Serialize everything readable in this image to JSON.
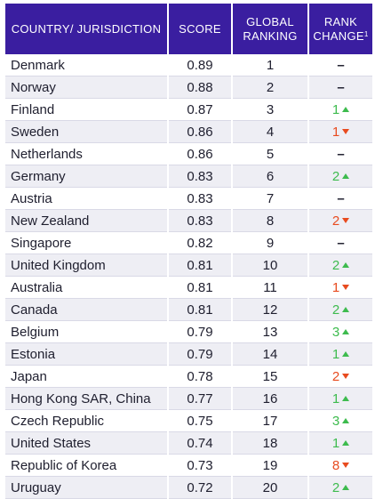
{
  "headers": {
    "country": "COUNTRY/ JURISDICTION",
    "score": "SCORE",
    "ranking": "GLOBAL RANKING",
    "change": "RANK CHANGE",
    "change_footnote": "1"
  },
  "colors": {
    "header_bg": "#3a1ea0",
    "up": "#3dbb4e",
    "down": "#e84b1f"
  },
  "rows": [
    {
      "country": "Denmark",
      "score": "0.89",
      "rank": "1",
      "change": "",
      "dir": "none"
    },
    {
      "country": "Norway",
      "score": "0.88",
      "rank": "2",
      "change": "",
      "dir": "none"
    },
    {
      "country": "Finland",
      "score": "0.87",
      "rank": "3",
      "change": "1",
      "dir": "up"
    },
    {
      "country": "Sweden",
      "score": "0.86",
      "rank": "4",
      "change": "1",
      "dir": "down"
    },
    {
      "country": "Netherlands",
      "score": "0.86",
      "rank": "5",
      "change": "",
      "dir": "none"
    },
    {
      "country": "Germany",
      "score": "0.83",
      "rank": "6",
      "change": "2",
      "dir": "up"
    },
    {
      "country": "Austria",
      "score": "0.83",
      "rank": "7",
      "change": "",
      "dir": "none"
    },
    {
      "country": "New Zealand",
      "score": "0.83",
      "rank": "8",
      "change": "2",
      "dir": "down"
    },
    {
      "country": "Singapore",
      "score": "0.82",
      "rank": "9",
      "change": "",
      "dir": "none"
    },
    {
      "country": "United Kingdom",
      "score": "0.81",
      "rank": "10",
      "change": "2",
      "dir": "up"
    },
    {
      "country": "Australia",
      "score": "0.81",
      "rank": "11",
      "change": "1",
      "dir": "down"
    },
    {
      "country": "Canada",
      "score": "0.81",
      "rank": "12",
      "change": "2",
      "dir": "up"
    },
    {
      "country": "Belgium",
      "score": "0.79",
      "rank": "13",
      "change": "3",
      "dir": "up"
    },
    {
      "country": "Estonia",
      "score": "0.79",
      "rank": "14",
      "change": "1",
      "dir": "up"
    },
    {
      "country": "Japan",
      "score": "0.78",
      "rank": "15",
      "change": "2",
      "dir": "down"
    },
    {
      "country": "Hong Kong SAR, China",
      "score": "0.77",
      "rank": "16",
      "change": "1",
      "dir": "up"
    },
    {
      "country": "Czech Republic",
      "score": "0.75",
      "rank": "17",
      "change": "3",
      "dir": "up"
    },
    {
      "country": "United States",
      "score": "0.74",
      "rank": "18",
      "change": "1",
      "dir": "up"
    },
    {
      "country": "Republic of Korea",
      "score": "0.73",
      "rank": "19",
      "change": "8",
      "dir": "down"
    },
    {
      "country": "Uruguay",
      "score": "0.72",
      "rank": "20",
      "change": "2",
      "dir": "up"
    }
  ]
}
